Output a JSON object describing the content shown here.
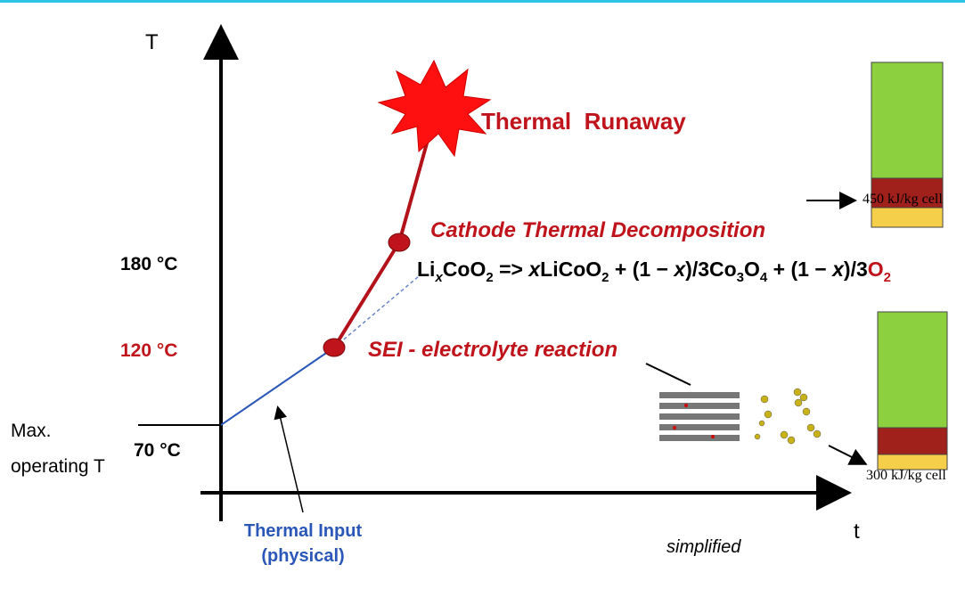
{
  "axes": {
    "y_label": "T",
    "x_label": "t"
  },
  "temperatures": {
    "t180": "180 °C",
    "t120": "120 °C",
    "t70": "70 °C"
  },
  "max_operating": [
    "Max.",
    "operating T"
  ],
  "events": {
    "runaway": "Thermal  Runaway",
    "cathode": "Cathode Thermal Decomposition",
    "sei": "SEI - electrolyte reaction"
  },
  "formula": [
    "Li",
    "x",
    "CoO",
    "2",
    " => ",
    "x",
    "LiCoO",
    "2",
    " + (1 − ",
    "x",
    ")/3Co",
    "3",
    "O",
    "4",
    " + (1 − ",
    "x",
    ")/3",
    "O",
    "2"
  ],
  "thermal_input": [
    "Thermal Input",
    "(physical)"
  ],
  "note": "simplified",
  "energy": {
    "top": "450 kJ/kg cell",
    "bottom": "300 kJ/kg cell"
  }
}
